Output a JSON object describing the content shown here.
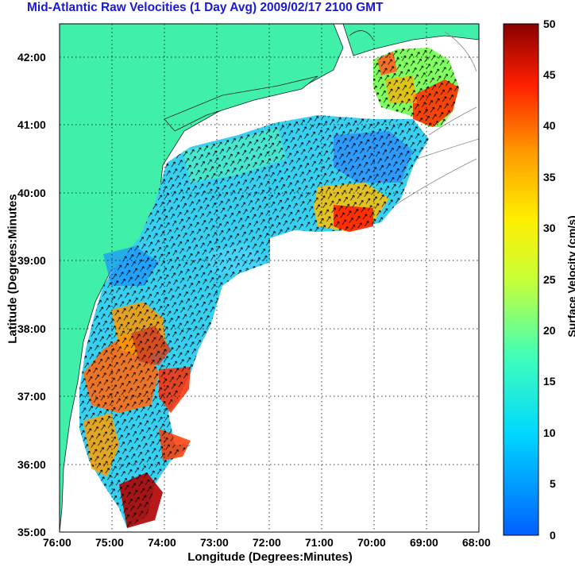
{
  "title": "Mid-Atlantic Raw Velocities (1 Day Avg) 2009/02/17 2100 GMT",
  "axes": {
    "xlabel": "Longitude (Degrees:Minutes)",
    "ylabel": "Latitude (Degrees:Minutes",
    "x_ticks": [
      "76:00",
      "75:00",
      "74:00",
      "73:00",
      "72:00",
      "71:00",
      "70:00",
      "69:00",
      "68:00"
    ],
    "y_ticks": [
      "42:00",
      "41:00",
      "40:00",
      "39:00",
      "38:00",
      "37:00",
      "36:00",
      "35:00"
    ]
  },
  "colorbar": {
    "label": "Surface Velocity (cm/s)",
    "ticks": [
      "50",
      "45",
      "40",
      "35",
      "30",
      "25",
      "20",
      "15",
      "10",
      "5",
      "0"
    ],
    "min": 0,
    "max": 50
  },
  "colors": {
    "land": "#40f0a8",
    "title": "#1a1ad6",
    "grid": "#000000"
  }
}
